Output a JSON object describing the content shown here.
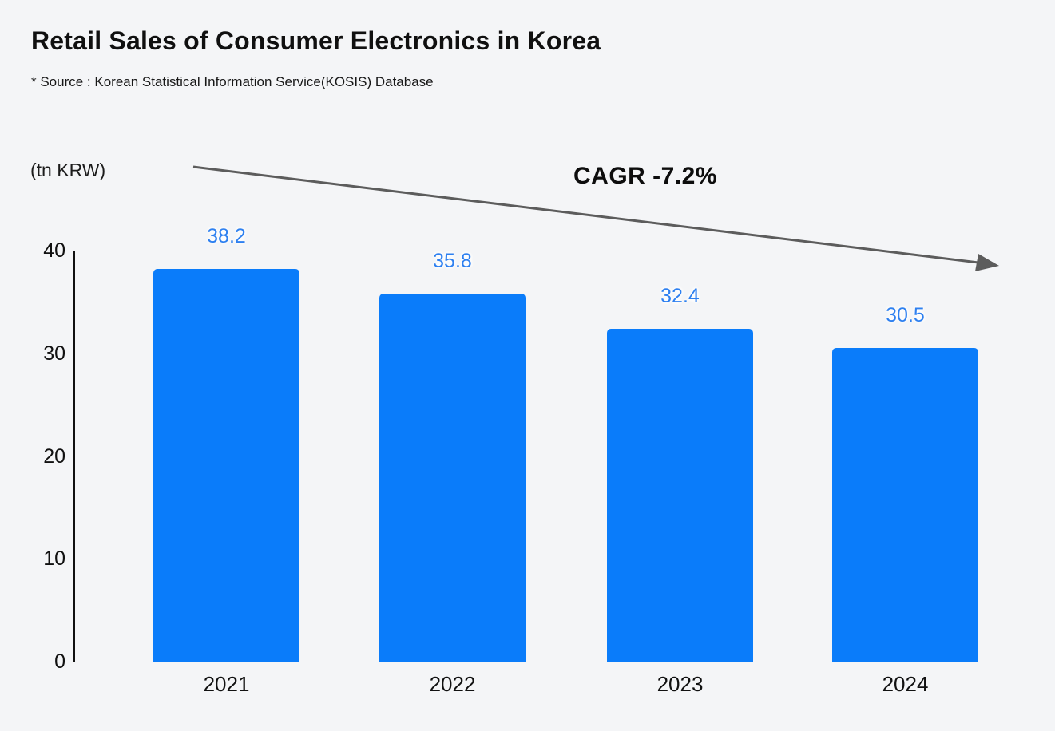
{
  "header": {
    "title": "Retail Sales of Consumer Electronics in Korea",
    "source_note": "* Source : Korean Statistical Information Service(KOSIS) Database"
  },
  "chart_data": {
    "type": "bar",
    "title": "Retail Sales of Consumer Electronics in Korea",
    "unit_label": "(tn KRW)",
    "annotation": "CAGR -7.2%",
    "categories": [
      "2021",
      "2022",
      "2023",
      "2024"
    ],
    "values": [
      38.2,
      35.8,
      32.4,
      30.5
    ],
    "value_labels": [
      "38.2",
      "35.8",
      "32.4",
      "30.5"
    ],
    "xlabel": "",
    "ylabel": "(tn KRW)",
    "ylim": [
      0,
      40
    ],
    "yticks": [
      "0",
      "10",
      "20",
      "30",
      "40"
    ],
    "grid": false,
    "legend": "none",
    "trend_arrow_direction": "down",
    "colors": {
      "bar": "#0a7cfa",
      "value_label": "#2e80f0",
      "axis": "#111111",
      "arrow": "#5c5c5c",
      "background": "#f4f5f7",
      "text": "#111111"
    }
  }
}
